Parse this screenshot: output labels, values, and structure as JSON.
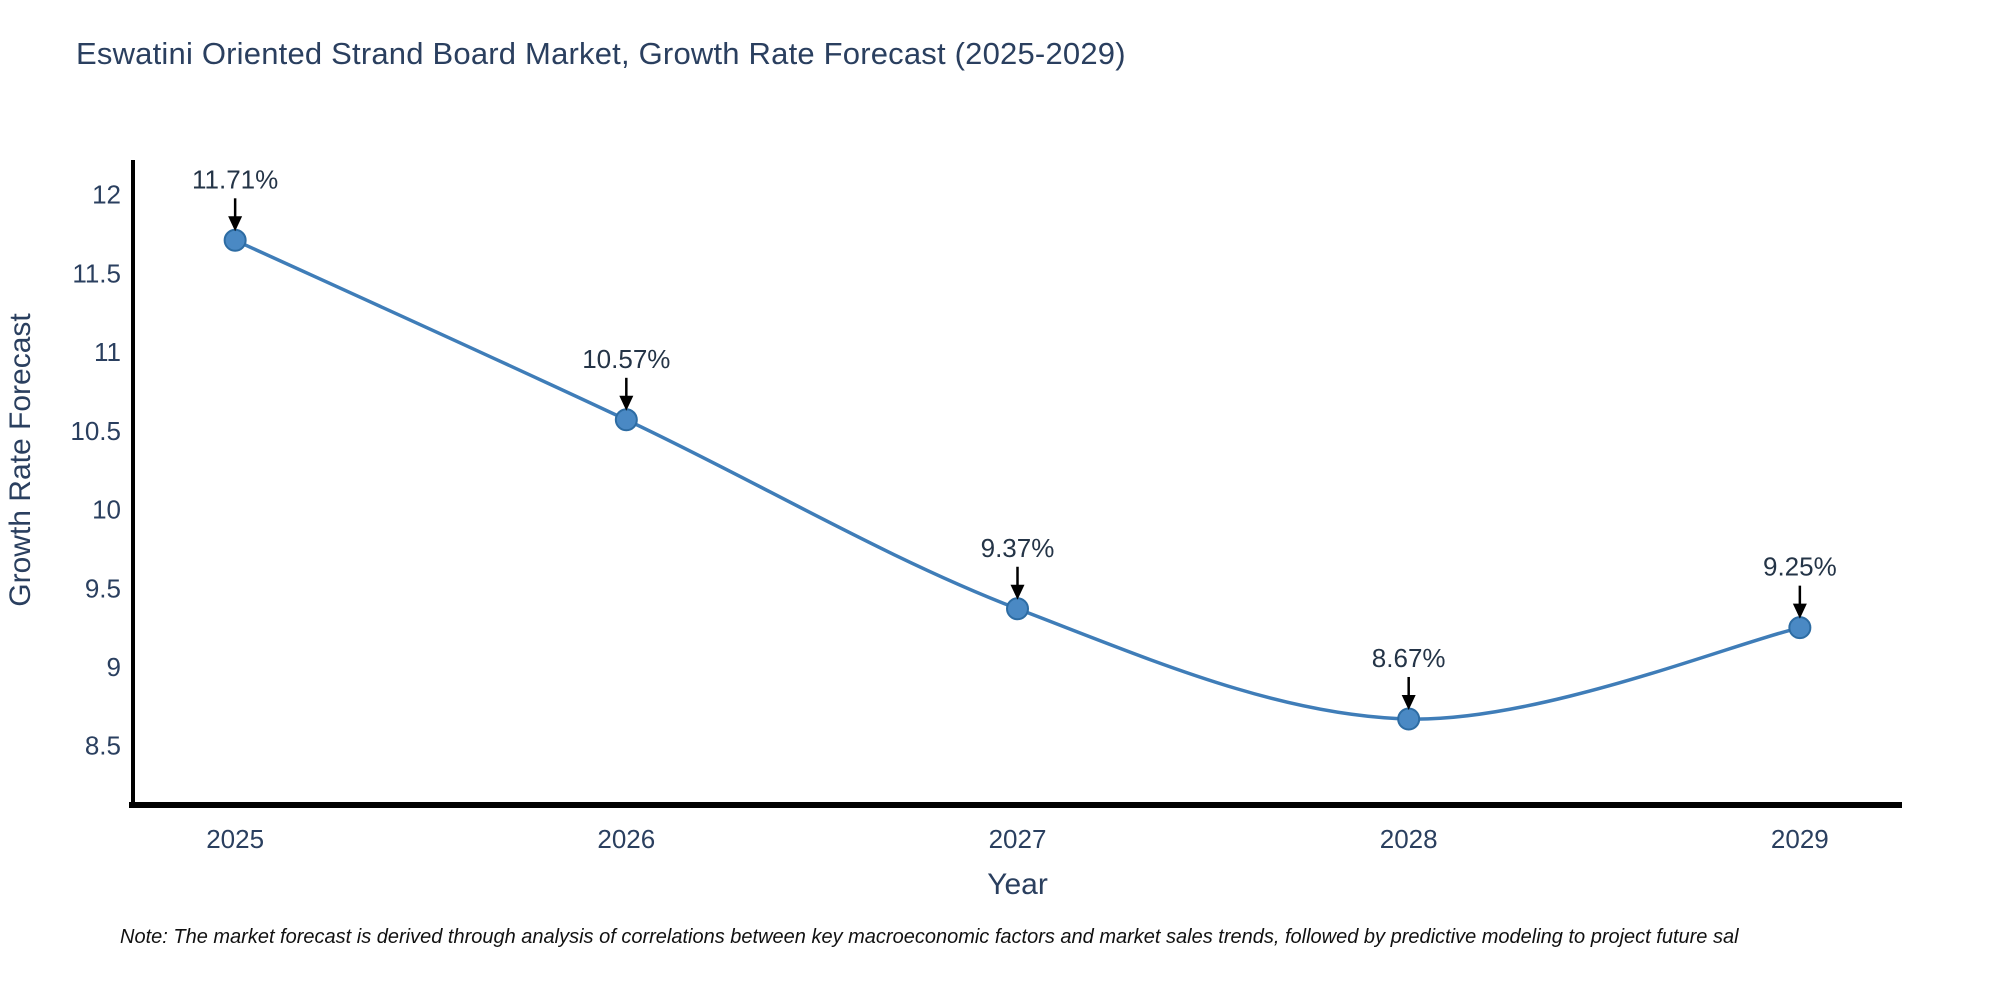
{
  "note": "Note: The market forecast is derived through analysis of correlations between key macroeconomic factors and market sales trends, followed by predictive modeling to project future sal",
  "chart_data": {
    "type": "line",
    "title": "Eswatini Oriented Strand Board Market, Growth Rate Forecast (2025-2029)",
    "x": [
      2025,
      2026,
      2027,
      2028,
      2029
    ],
    "values": [
      11.71,
      10.57,
      9.37,
      8.67,
      9.25
    ],
    "point_labels": [
      "11.71%",
      "10.57%",
      "9.37%",
      "8.67%",
      "9.25%"
    ],
    "xlabel": "Year",
    "ylabel": "Growth Rate Forecast",
    "xticks": [
      2025,
      2026,
      2027,
      2028,
      2029
    ],
    "yticks": [
      8.5,
      9,
      9.5,
      10,
      10.5,
      11,
      11.5,
      12
    ],
    "xlim": [
      2024.744,
      2029.256
    ],
    "ylim": [
      8.13,
      12.22
    ],
    "grid": false,
    "legend": "none",
    "colors": {
      "line": "#3f7db8",
      "marker_fill": "#4a89c4",
      "marker_edge": "#2d6ca3",
      "axis": "#000000",
      "tick_text": "#2a3f5f",
      "annotation_text": "#243447",
      "arrow": "#000000",
      "title_text": "#2a3f5f"
    }
  }
}
